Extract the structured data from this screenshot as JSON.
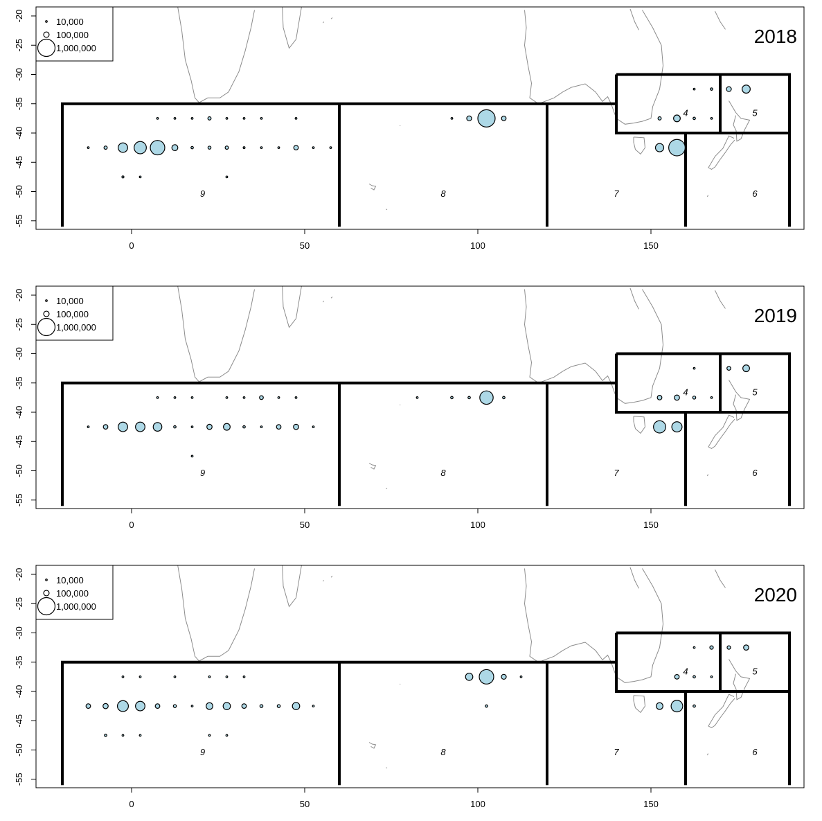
{
  "chart_data": [
    {
      "type": "scatter",
      "title": "2018",
      "xlim": [
        -20,
        190
      ],
      "ylim": [
        -56,
        -19
      ],
      "x_ticks": [
        0,
        50,
        100,
        150
      ],
      "y_ticks": [
        -20,
        -25,
        -30,
        -35,
        -40,
        -45,
        -50,
        -55
      ],
      "legend": {
        "placement": "top-left",
        "entries": [
          {
            "label": "10,000",
            "value": 10000
          },
          {
            "label": "100,000",
            "value": 100000
          },
          {
            "label": "1,000,000",
            "value": 1000000
          }
        ]
      },
      "region_labels": [
        "9",
        "8",
        "7",
        "4",
        "5",
        "6"
      ],
      "points": [
        {
          "x": 7.5,
          "y": -37.5,
          "value": 1000
        },
        {
          "x": 12.5,
          "y": -37.5,
          "value": 3000
        },
        {
          "x": 17.5,
          "y": -37.5,
          "value": 3000
        },
        {
          "x": 22.5,
          "y": -37.5,
          "value": 35000
        },
        {
          "x": 27.5,
          "y": -37.5,
          "value": 3000
        },
        {
          "x": 32.5,
          "y": -37.5,
          "value": 8000
        },
        {
          "x": 37.5,
          "y": -37.5,
          "value": 8000
        },
        {
          "x": 47.5,
          "y": -37.5,
          "value": 1000
        },
        {
          "x": -12.5,
          "y": -42.5,
          "value": 8000
        },
        {
          "x": -7.5,
          "y": -42.5,
          "value": 35000
        },
        {
          "x": -2.5,
          "y": -42.5,
          "value": 300000
        },
        {
          "x": 2.5,
          "y": -42.5,
          "value": 500000
        },
        {
          "x": 7.5,
          "y": -42.5,
          "value": 700000
        },
        {
          "x": 12.5,
          "y": -42.5,
          "value": 120000
        },
        {
          "x": 17.5,
          "y": -42.5,
          "value": 20000
        },
        {
          "x": 22.5,
          "y": -42.5,
          "value": 30000
        },
        {
          "x": 27.5,
          "y": -42.5,
          "value": 35000
        },
        {
          "x": 32.5,
          "y": -42.5,
          "value": 12000
        },
        {
          "x": 37.5,
          "y": -42.5,
          "value": 3000
        },
        {
          "x": 42.5,
          "y": -42.5,
          "value": 3000
        },
        {
          "x": 47.5,
          "y": -42.5,
          "value": 70000
        },
        {
          "x": 52.5,
          "y": -42.5,
          "value": 8000
        },
        {
          "x": 57.5,
          "y": -42.5,
          "value": 1000
        },
        {
          "x": -2.5,
          "y": -47.5,
          "value": 15000
        },
        {
          "x": 2.5,
          "y": -47.5,
          "value": 3000
        },
        {
          "x": 27.5,
          "y": -47.5,
          "value": 3000
        },
        {
          "x": 92.5,
          "y": -37.5,
          "value": 10000
        },
        {
          "x": 97.5,
          "y": -37.5,
          "value": 80000
        },
        {
          "x": 102.5,
          "y": -37.5,
          "value": 1000000
        },
        {
          "x": 107.5,
          "y": -37.5,
          "value": 70000
        },
        {
          "x": 162.5,
          "y": -32.5,
          "value": 8000
        },
        {
          "x": 167.5,
          "y": -32.5,
          "value": 20000
        },
        {
          "x": 172.5,
          "y": -32.5,
          "value": 80000
        },
        {
          "x": 177.5,
          "y": -32.5,
          "value": 220000
        },
        {
          "x": 152.5,
          "y": -37.5,
          "value": 35000
        },
        {
          "x": 157.5,
          "y": -37.5,
          "value": 150000
        },
        {
          "x": 162.5,
          "y": -37.5,
          "value": 20000
        },
        {
          "x": 167.5,
          "y": -37.5,
          "value": 3000
        },
        {
          "x": 152.5,
          "y": -42.5,
          "value": 230000
        },
        {
          "x": 157.5,
          "y": -42.5,
          "value": 900000
        }
      ]
    },
    {
      "type": "scatter",
      "title": "2019",
      "xlim": [
        -20,
        190
      ],
      "ylim": [
        -56,
        -19
      ],
      "x_ticks": [
        0,
        50,
        100,
        150
      ],
      "y_ticks": [
        -20,
        -25,
        -30,
        -35,
        -40,
        -45,
        -50,
        -55
      ],
      "legend": {
        "placement": "top-left",
        "entries": [
          {
            "label": "10,000",
            "value": 10000
          },
          {
            "label": "100,000",
            "value": 100000
          },
          {
            "label": "1,000,000",
            "value": 1000000
          }
        ]
      },
      "region_labels": [
        "9",
        "8",
        "7",
        "4",
        "5",
        "6"
      ],
      "points": [
        {
          "x": 7.5,
          "y": -37.5,
          "value": 1000
        },
        {
          "x": 12.5,
          "y": -37.5,
          "value": 1000
        },
        {
          "x": 17.5,
          "y": -37.5,
          "value": 3000
        },
        {
          "x": 27.5,
          "y": -37.5,
          "value": 3000
        },
        {
          "x": 32.5,
          "y": -37.5,
          "value": 3000
        },
        {
          "x": 37.5,
          "y": -37.5,
          "value": 50000
        },
        {
          "x": 42.5,
          "y": -37.5,
          "value": 3000
        },
        {
          "x": 47.5,
          "y": -37.5,
          "value": 1000
        },
        {
          "x": -12.5,
          "y": -42.5,
          "value": 3000
        },
        {
          "x": -7.5,
          "y": -42.5,
          "value": 70000
        },
        {
          "x": -2.5,
          "y": -42.5,
          "value": 300000
        },
        {
          "x": 2.5,
          "y": -42.5,
          "value": 300000
        },
        {
          "x": 7.5,
          "y": -42.5,
          "value": 250000
        },
        {
          "x": 12.5,
          "y": -42.5,
          "value": 20000
        },
        {
          "x": 17.5,
          "y": -42.5,
          "value": 8000
        },
        {
          "x": 22.5,
          "y": -42.5,
          "value": 90000
        },
        {
          "x": 27.5,
          "y": -42.5,
          "value": 150000
        },
        {
          "x": 32.5,
          "y": -42.5,
          "value": 20000
        },
        {
          "x": 37.5,
          "y": -42.5,
          "value": 1000
        },
        {
          "x": 42.5,
          "y": -42.5,
          "value": 70000
        },
        {
          "x": 47.5,
          "y": -42.5,
          "value": 90000
        },
        {
          "x": 52.5,
          "y": -42.5,
          "value": 3000
        },
        {
          "x": 17.5,
          "y": -47.5,
          "value": 3000
        },
        {
          "x": 82.5,
          "y": -37.5,
          "value": 10000
        },
        {
          "x": 92.5,
          "y": -37.5,
          "value": 20000
        },
        {
          "x": 97.5,
          "y": -37.5,
          "value": 20000
        },
        {
          "x": 102.5,
          "y": -37.5,
          "value": 600000
        },
        {
          "x": 107.5,
          "y": -37.5,
          "value": 20000
        },
        {
          "x": 162.5,
          "y": -32.5,
          "value": 3000
        },
        {
          "x": 172.5,
          "y": -32.5,
          "value": 50000
        },
        {
          "x": 177.5,
          "y": -32.5,
          "value": 150000
        },
        {
          "x": 152.5,
          "y": -37.5,
          "value": 70000
        },
        {
          "x": 157.5,
          "y": -37.5,
          "value": 90000
        },
        {
          "x": 162.5,
          "y": -37.5,
          "value": 30000
        },
        {
          "x": 167.5,
          "y": -37.5,
          "value": 8000
        },
        {
          "x": 152.5,
          "y": -42.5,
          "value": 500000
        },
        {
          "x": 157.5,
          "y": -42.5,
          "value": 350000
        }
      ]
    },
    {
      "type": "scatter",
      "title": "2020",
      "xlim": [
        -20,
        190
      ],
      "ylim": [
        -56,
        -19
      ],
      "x_ticks": [
        0,
        50,
        100,
        150
      ],
      "y_ticks": [
        -20,
        -25,
        -30,
        -35,
        -40,
        -45,
        -50,
        -55
      ],
      "legend": {
        "placement": "top-left",
        "entries": [
          {
            "label": "10,000",
            "value": 10000
          },
          {
            "label": "100,000",
            "value": 100000
          },
          {
            "label": "1,000,000",
            "value": 1000000
          }
        ]
      },
      "region_labels": [
        "9",
        "8",
        "7",
        "4",
        "5",
        "6"
      ],
      "points": [
        {
          "x": -2.5,
          "y": -37.5,
          "value": 1000
        },
        {
          "x": 2.5,
          "y": -37.5,
          "value": 10000
        },
        {
          "x": 12.5,
          "y": -37.5,
          "value": 8000
        },
        {
          "x": 22.5,
          "y": -37.5,
          "value": 3000
        },
        {
          "x": 27.5,
          "y": -37.5,
          "value": 1000
        },
        {
          "x": 32.5,
          "y": -37.5,
          "value": 8000
        },
        {
          "x": -12.5,
          "y": -42.5,
          "value": 70000
        },
        {
          "x": -7.5,
          "y": -42.5,
          "value": 90000
        },
        {
          "x": -2.5,
          "y": -42.5,
          "value": 400000
        },
        {
          "x": 2.5,
          "y": -42.5,
          "value": 300000
        },
        {
          "x": 7.5,
          "y": -42.5,
          "value": 70000
        },
        {
          "x": 12.5,
          "y": -42.5,
          "value": 30000
        },
        {
          "x": 17.5,
          "y": -42.5,
          "value": 3000
        },
        {
          "x": 22.5,
          "y": -42.5,
          "value": 150000
        },
        {
          "x": 27.5,
          "y": -42.5,
          "value": 180000
        },
        {
          "x": 32.5,
          "y": -42.5,
          "value": 70000
        },
        {
          "x": 37.5,
          "y": -42.5,
          "value": 30000
        },
        {
          "x": 42.5,
          "y": -42.5,
          "value": 30000
        },
        {
          "x": 47.5,
          "y": -42.5,
          "value": 180000
        },
        {
          "x": 52.5,
          "y": -42.5,
          "value": 1000
        },
        {
          "x": -7.5,
          "y": -47.5,
          "value": 20000
        },
        {
          "x": -2.5,
          "y": -47.5,
          "value": 3000
        },
        {
          "x": 2.5,
          "y": -47.5,
          "value": 3000
        },
        {
          "x": 22.5,
          "y": -47.5,
          "value": 3000
        },
        {
          "x": 27.5,
          "y": -47.5,
          "value": 1000
        },
        {
          "x": 97.5,
          "y": -37.5,
          "value": 180000
        },
        {
          "x": 102.5,
          "y": -37.5,
          "value": 700000
        },
        {
          "x": 107.5,
          "y": -37.5,
          "value": 80000
        },
        {
          "x": 112.5,
          "y": -37.5,
          "value": 8000
        },
        {
          "x": 102.5,
          "y": -42.5,
          "value": 20000
        },
        {
          "x": 162.5,
          "y": -32.5,
          "value": 8000
        },
        {
          "x": 167.5,
          "y": -32.5,
          "value": 40000
        },
        {
          "x": 172.5,
          "y": -32.5,
          "value": 40000
        },
        {
          "x": 177.5,
          "y": -32.5,
          "value": 90000
        },
        {
          "x": 157.5,
          "y": -37.5,
          "value": 70000
        },
        {
          "x": 162.5,
          "y": -37.5,
          "value": 20000
        },
        {
          "x": 167.5,
          "y": -37.5,
          "value": 1000
        },
        {
          "x": 152.5,
          "y": -42.5,
          "value": 150000
        },
        {
          "x": 157.5,
          "y": -42.5,
          "value": 450000
        },
        {
          "x": 162.5,
          "y": -42.5,
          "value": 20000
        }
      ]
    }
  ]
}
